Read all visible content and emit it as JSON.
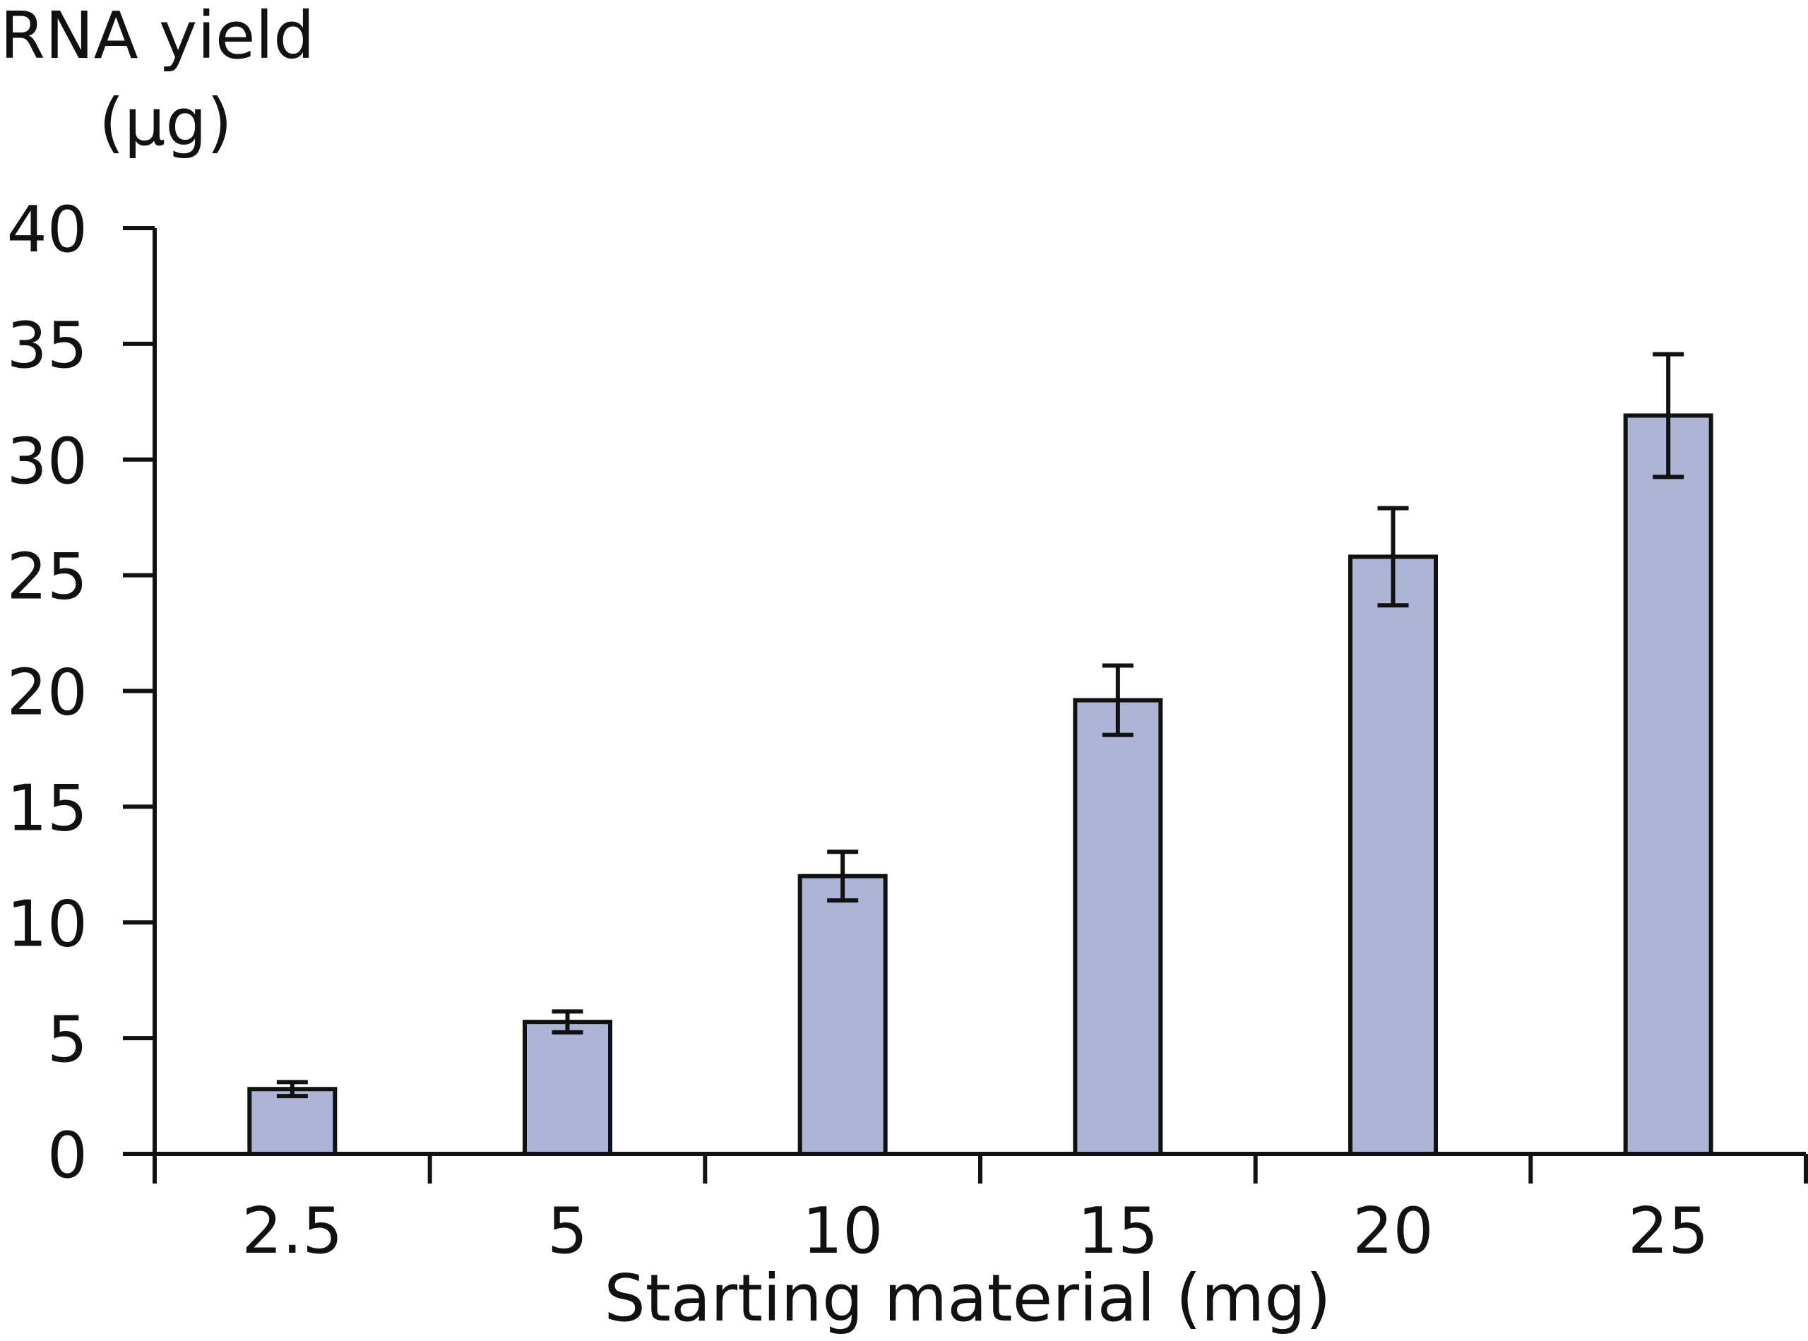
{
  "chart_data": {
    "type": "bar",
    "title": "",
    "ylabel_line1": "RNA yield",
    "ylabel_line2": "(µg)",
    "xlabel": "Starting material (mg)",
    "categories": [
      "2.5",
      "5",
      "10",
      "15",
      "20",
      "25"
    ],
    "values": [
      2.8,
      5.7,
      12.0,
      19.6,
      25.8,
      31.9
    ],
    "errors": [
      0.3,
      0.45,
      1.05,
      1.5,
      2.1,
      2.65
    ],
    "ylim": [
      0,
      40
    ],
    "yticks": [
      "0",
      "5",
      "10",
      "15",
      "20",
      "25",
      "30",
      "35",
      "40"
    ],
    "grid": false,
    "bar_color": "#aeb4d6",
    "line_color": "#111111"
  }
}
